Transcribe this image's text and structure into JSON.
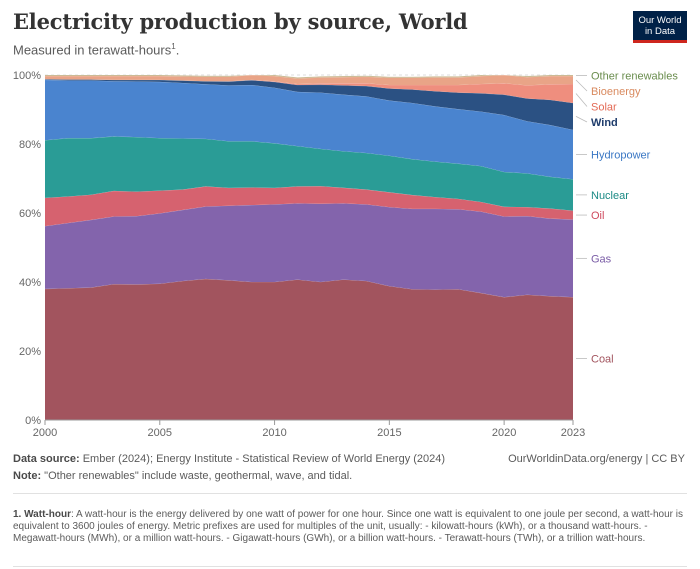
{
  "header": {
    "title": "Electricity production by source, World",
    "subtitle": "Measured in terawatt-hours",
    "subtitle_sup": "1",
    "subtitle_end": ".",
    "logo_line1": "Our World",
    "logo_line2": "in Data"
  },
  "chart_data": {
    "type": "area",
    "stacked": true,
    "relative": true,
    "x": [
      2000,
      2001,
      2002,
      2003,
      2004,
      2005,
      2006,
      2007,
      2008,
      2009,
      2010,
      2011,
      2012,
      2013,
      2014,
      2015,
      2016,
      2017,
      2018,
      2019,
      2020,
      2021,
      2022,
      2023
    ],
    "x_ticks": [
      "2000",
      "2005",
      "2010",
      "2015",
      "2020",
      "2023"
    ],
    "x_tick_values": [
      2000,
      2005,
      2010,
      2015,
      2020,
      2023
    ],
    "y_ticks": [
      "0%",
      "20%",
      "40%",
      "60%",
      "80%",
      "100%"
    ],
    "y_tick_values": [
      0,
      20,
      40,
      60,
      80,
      100
    ],
    "ylim": [
      0,
      100
    ],
    "grid": "horizontal dashed",
    "legend_placement": "right, labels beside areas",
    "series": [
      {
        "name": "Coal",
        "color": "#a2545e",
        "label_color": "#a2545e",
        "values": [
          38.0,
          38.2,
          38.4,
          39.4,
          39.3,
          39.5,
          40.3,
          40.9,
          40.5,
          40.0,
          40.0,
          40.7,
          40.0,
          40.7,
          40.3,
          38.8,
          37.9,
          37.8,
          37.9,
          36.8,
          35.6,
          36.3,
          35.9,
          35.6
        ]
      },
      {
        "name": "Gas",
        "color": "#8364ac",
        "label_color": "#7a5ca6",
        "values": [
          18.2,
          18.9,
          19.6,
          19.6,
          19.8,
          20.4,
          20.6,
          21.0,
          21.6,
          22.3,
          22.5,
          22.1,
          22.7,
          22.1,
          22.2,
          22.9,
          23.3,
          23.4,
          23.2,
          23.6,
          23.4,
          22.8,
          22.5,
          22.5
        ]
      },
      {
        "name": "Oil",
        "color": "#d6626f",
        "label_color": "#cf4a5e",
        "values": [
          8.2,
          7.7,
          7.3,
          7.4,
          7.1,
          6.6,
          5.9,
          5.8,
          5.2,
          5.1,
          4.8,
          4.9,
          5.1,
          4.5,
          4.3,
          4.3,
          4.0,
          3.4,
          3.0,
          2.8,
          2.8,
          2.6,
          2.9,
          2.6
        ]
      },
      {
        "name": "Nuclear",
        "color": "#2a9c96",
        "label_color": "#1b8a85",
        "values": [
          16.7,
          16.9,
          16.4,
          15.8,
          15.8,
          15.2,
          14.8,
          13.8,
          13.5,
          13.4,
          12.9,
          11.7,
          10.8,
          10.6,
          10.6,
          10.6,
          10.4,
          10.3,
          10.2,
          10.4,
          10.1,
          9.8,
          9.2,
          9.1
        ]
      },
      {
        "name": "Hydropower",
        "color": "#4a84cf",
        "label_color": "#3a77c4",
        "values": [
          17.5,
          16.7,
          16.7,
          16.0,
          16.1,
          16.3,
          16.1,
          15.8,
          16.2,
          16.3,
          16.1,
          15.7,
          16.3,
          16.4,
          16.4,
          16.0,
          16.3,
          16.0,
          15.8,
          15.8,
          16.5,
          15.1,
          15.0,
          14.3
        ]
      },
      {
        "name": "Wind",
        "color": "#2b5183",
        "label_color": "#1e3c6c",
        "values": [
          0.2,
          0.3,
          0.3,
          0.4,
          0.5,
          0.6,
          0.7,
          0.9,
          1.1,
          1.4,
          1.7,
          2.0,
          2.3,
          2.7,
          3.0,
          3.5,
          3.9,
          4.4,
          4.8,
          5.3,
          5.9,
          6.6,
          7.3,
          7.8
        ]
      },
      {
        "name": "Solar",
        "color": "#ef8e7e",
        "label_color": "#e36a55",
        "values": [
          0.0,
          0.0,
          0.0,
          0.0,
          0.0,
          0.0,
          0.0,
          0.0,
          0.1,
          0.1,
          0.2,
          0.3,
          0.4,
          0.6,
          0.8,
          1.0,
          1.3,
          1.8,
          2.2,
          2.7,
          3.3,
          3.8,
          4.5,
          5.5
        ]
      },
      {
        "name": "Bioenergy",
        "color": "#e9a487",
        "label_color": "#d98a5f",
        "values": [
          0.9,
          1.0,
          1.0,
          1.1,
          1.1,
          1.1,
          1.2,
          1.3,
          1.3,
          1.4,
          1.5,
          1.6,
          1.7,
          1.8,
          1.9,
          2.1,
          2.1,
          2.2,
          2.2,
          2.3,
          2.4,
          2.4,
          2.4,
          2.3
        ]
      },
      {
        "name": "Other renewables",
        "color": "#c7b48a",
        "label_color": "#6a8d4e",
        "values": [
          0.3,
          0.3,
          0.3,
          0.3,
          0.3,
          0.3,
          0.3,
          0.3,
          0.3,
          0.3,
          0.3,
          0.3,
          0.3,
          0.3,
          0.3,
          0.3,
          0.3,
          0.3,
          0.3,
          0.3,
          0.3,
          0.3,
          0.3,
          0.3
        ]
      }
    ]
  },
  "footer": {
    "source_label": "Data source:",
    "source_text": "Ember (2024); Energy Institute - Statistical Review of World Energy (2024)",
    "note_label": "Note:",
    "note_text": "\"Other renewables\" include waste, geothermal, wave, and tidal.",
    "credit": "OurWorldinData.org/energy | CC BY",
    "footnote_label": "1. Watt-hour",
    "footnote_text": ": A watt-hour is the energy delivered by one watt of power for one hour. Since one watt is equivalent to one joule per second, a watt-hour is equivalent to 3600 joules of energy. Metric prefixes are used for multiples of the unit, usually: - kilowatt-hours (kWh), or a thousand watt-hours. - Megawatt-hours (MWh), or a million watt-hours. - Gigawatt-hours (GWh), or a billion watt-hours. - Terawatt-hours (TWh), or a trillion watt-hours."
  }
}
